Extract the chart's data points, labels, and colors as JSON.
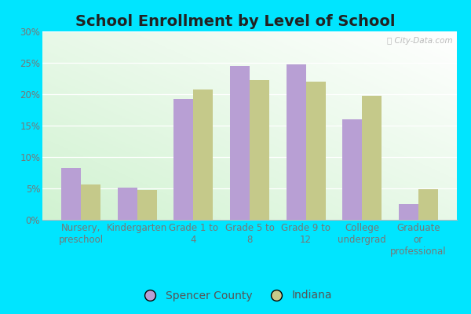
{
  "title": "School Enrollment by Level of School",
  "categories": [
    "Nursery,\npreschool",
    "Kindergarten",
    "Grade 1 to\n4",
    "Grade 5 to\n8",
    "Grade 9 to\n12",
    "College\nundergrad",
    "Graduate\nor\nprofessional"
  ],
  "spencer_county": [
    8.3,
    5.1,
    19.3,
    24.5,
    24.7,
    16.0,
    2.5
  ],
  "indiana": [
    5.6,
    4.8,
    20.7,
    22.3,
    22.0,
    19.8,
    4.9
  ],
  "spencer_color": "#b89fd4",
  "indiana_color": "#c5c98a",
  "legend_spencer": "Spencer County",
  "legend_indiana": "Indiana",
  "ylim": [
    0,
    30
  ],
  "yticks": [
    0,
    5,
    10,
    15,
    20,
    25,
    30
  ],
  "ytick_labels": [
    "0%",
    "5%",
    "10%",
    "15%",
    "20%",
    "25%",
    "30%"
  ],
  "outer_background": "#00e5ff",
  "title_fontsize": 14,
  "tick_fontsize": 8.5,
  "legend_fontsize": 10
}
